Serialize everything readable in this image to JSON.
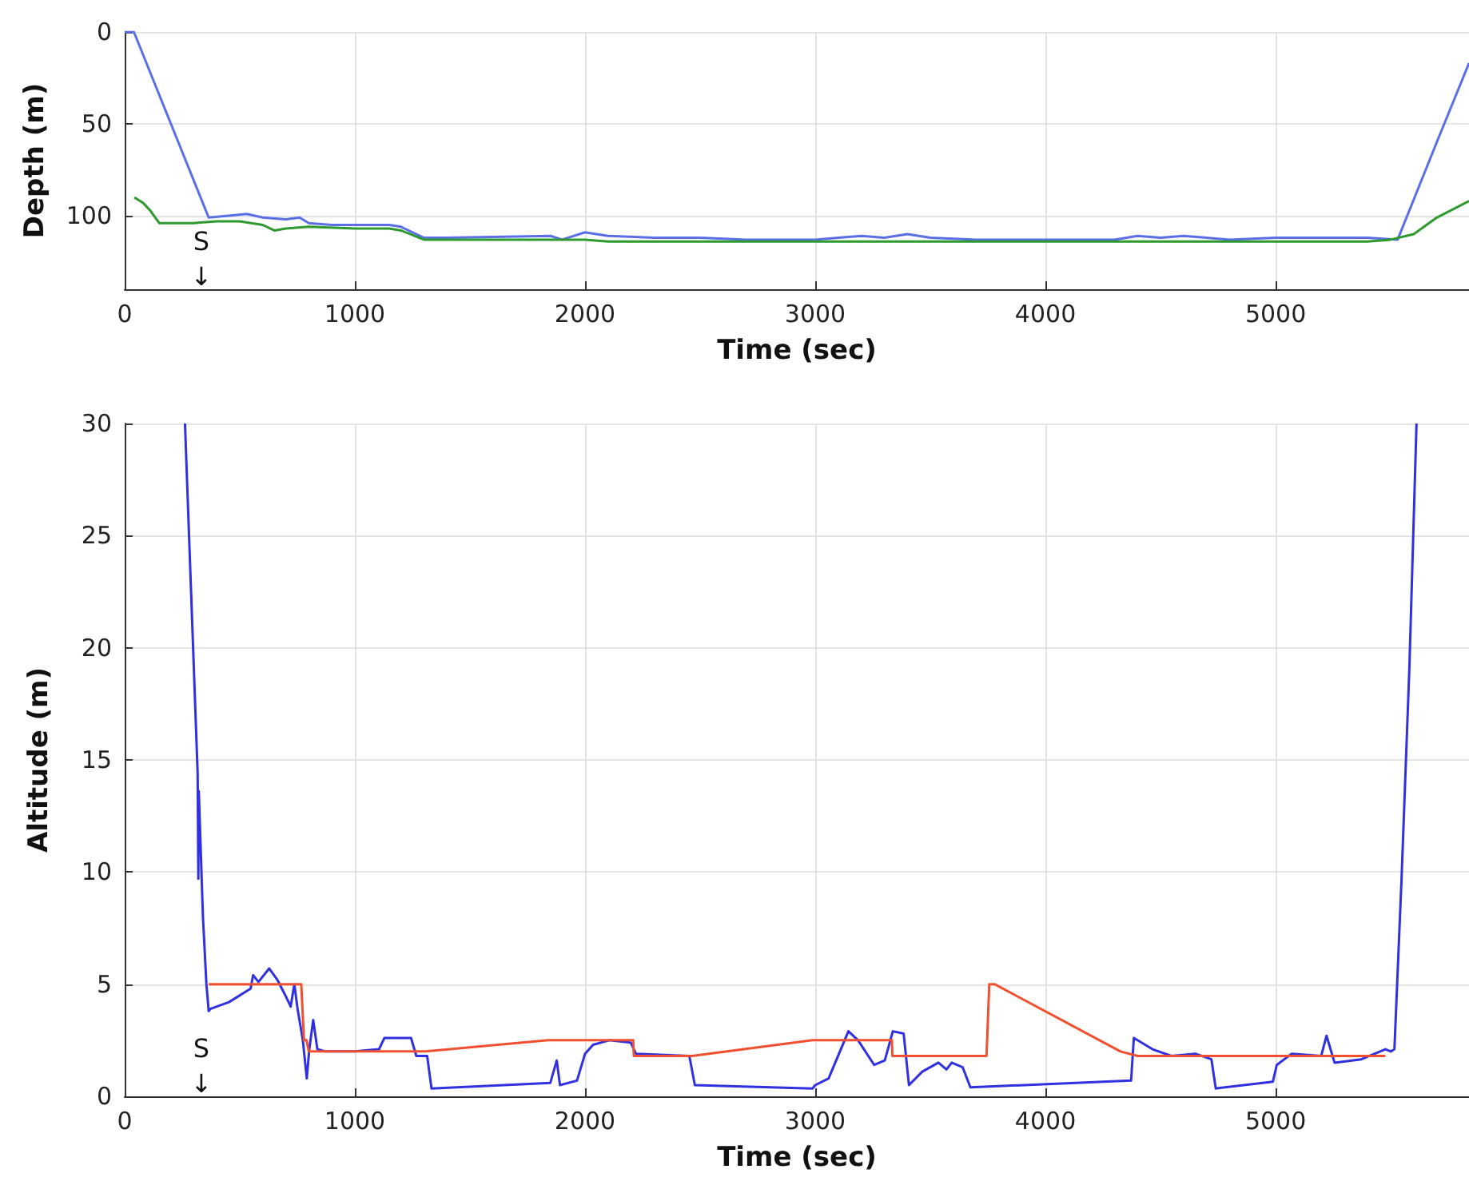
{
  "chart_data": [
    {
      "type": "line",
      "xlabel": "Time (sec)",
      "ylabel": "Depth (m)",
      "xlim": [
        0,
        5840
      ],
      "xticks": [
        0,
        1000,
        2000,
        3000,
        4000,
        5000
      ],
      "ylim": [
        140,
        0
      ],
      "yticks": [
        0,
        50,
        100
      ],
      "grid": true,
      "annotations": [
        "S",
        "↓"
      ],
      "series": [
        {
          "color": "#5a6ee8",
          "x": [
            0,
            40,
            365,
            450,
            530,
            600,
            700,
            760,
            800,
            900,
            1000,
            1150,
            1200,
            1300,
            1400,
            1850,
            1900,
            2000,
            2100,
            2300,
            2500,
            2700,
            3000,
            3100,
            3200,
            3300,
            3400,
            3500,
            3700,
            4000,
            4300,
            4400,
            4500,
            4600,
            4700,
            4800,
            5000,
            5200,
            5400,
            5530,
            5700,
            5840
          ],
          "values": [
            0,
            0,
            101,
            100,
            99,
            101,
            102,
            101,
            104,
            105,
            105,
            105,
            106,
            112,
            112,
            111,
            113,
            109,
            111,
            112,
            112,
            113,
            113,
            112,
            111,
            112,
            110,
            112,
            113,
            113,
            113,
            111,
            112,
            111,
            112,
            113,
            112,
            112,
            112,
            113,
            60,
            17
          ]
        },
        {
          "color": "#2e9a2e",
          "x": [
            42,
            80,
            110,
            150,
            200,
            300,
            400,
            500,
            600,
            650,
            700,
            800,
            1000,
            1150,
            1200,
            1300,
            1500,
            2000,
            2100,
            2500,
            3000,
            4000,
            5000,
            5400,
            5500,
            5600,
            5700,
            5840
          ],
          "values": [
            90,
            93,
            97,
            104,
            104,
            104,
            103,
            103,
            105,
            108,
            107,
            106,
            107,
            107,
            108,
            113,
            113,
            113,
            114,
            114,
            114,
            114,
            114,
            114,
            113,
            110,
            101,
            92
          ]
        }
      ]
    },
    {
      "type": "line",
      "xlabel": "Time (sec)",
      "ylabel": "Altitude (m)",
      "xlim": [
        0,
        5840
      ],
      "xticks": [
        0,
        1000,
        2000,
        3000,
        4000,
        5000
      ],
      "ylim": [
        0,
        30
      ],
      "yticks": [
        0,
        5,
        10,
        15,
        20,
        25,
        30
      ],
      "grid": true,
      "annotations": [
        "S",
        "↓"
      ],
      "series": [
        {
          "color": "#3030e0",
          "x": [
            262,
            317,
            320,
            322,
            340,
            355,
            365,
            372,
            453,
            547,
            558,
            581,
            628,
            663,
            698,
            721,
            737,
            751,
            774,
            791,
            802,
            819,
            837,
            872,
            1000,
            1105,
            1128,
            1244,
            1267,
            1314,
            1333,
            1849,
            1877,
            1891,
            1965,
            2000,
            2035,
            2105,
            2198,
            2221,
            2453,
            2477,
            2988,
            3000,
            3058,
            3144,
            3186,
            3256,
            3302,
            3337,
            3384,
            3407,
            3465,
            3535,
            3570,
            3593,
            3640,
            3674,
            4372,
            4384,
            4465,
            4547,
            4651,
            4721,
            4740,
            4988,
            5005,
            5070,
            5198,
            5221,
            5256,
            5372,
            5477,
            5500,
            5516,
            5547,
            5581,
            5612
          ],
          "values": [
            30,
            14.4,
            9.7,
            13.6,
            8,
            5,
            3.8,
            3.9,
            4.2,
            4.8,
            5.4,
            5.1,
            5.7,
            5.2,
            4.5,
            4,
            5,
            3.9,
            2.5,
            0.8,
            2.1,
            3.4,
            2.1,
            2,
            2,
            2.1,
            2.6,
            2.6,
            1.8,
            1.8,
            0.35,
            0.6,
            1.6,
            0.5,
            0.7,
            1.9,
            2.3,
            2.5,
            2.4,
            1.9,
            1.8,
            0.5,
            0.35,
            0.5,
            0.8,
            2.9,
            2.5,
            1.4,
            1.6,
            2.9,
            2.8,
            0.5,
            1.1,
            1.5,
            1.2,
            1.5,
            1.3,
            0.4,
            0.7,
            2.6,
            2.1,
            1.8,
            1.9,
            1.65,
            0.35,
            0.65,
            1.4,
            1.9,
            1.8,
            2.7,
            1.5,
            1.65,
            2.1,
            2,
            2.1,
            9.7,
            19.1,
            30
          ]
        },
        {
          "color": "#f05030",
          "x": [
            365,
            767,
            779,
            790,
            800,
            1308,
            1840,
            2209,
            2212,
            2465,
            2988,
            3333,
            3335,
            3744,
            3756,
            3779,
            4326,
            4400,
            5477
          ],
          "values": [
            5,
            5,
            2.5,
            2.5,
            2,
            2,
            2.5,
            2.5,
            1.8,
            1.8,
            2.5,
            2.5,
            1.8,
            1.8,
            5,
            5,
            2,
            1.8,
            1.8
          ]
        }
      ]
    }
  ]
}
